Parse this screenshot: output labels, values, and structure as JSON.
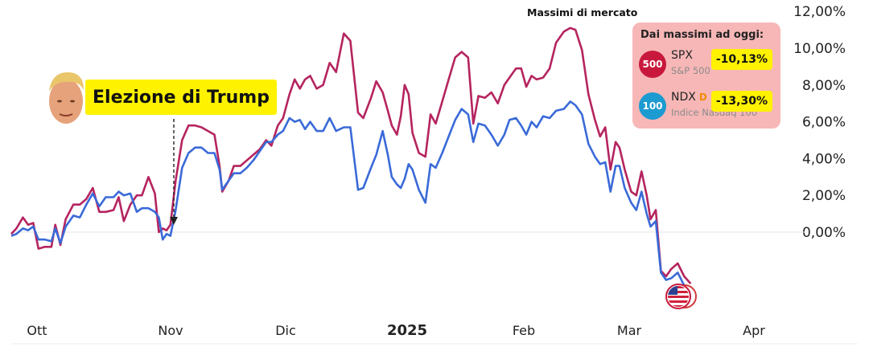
{
  "labels": {
    "top": "Massimi di mercato",
    "election": "Elezione di Trump"
  },
  "info_box": {
    "title": "Dai massimi ad oggi:",
    "rows": [
      {
        "badge": "500",
        "ticker": "SPX",
        "name": "S&P 500",
        "pct": "-10,13%",
        "extra": "",
        "color": "#c8193c"
      },
      {
        "badge": "100",
        "ticker": "NDX",
        "name": "Indice Nasdaq 100",
        "pct": "-13,30%",
        "extra": "D",
        "color": "#1c9bd1"
      }
    ]
  },
  "chart_data": {
    "type": "line",
    "x_ticks": [
      "Ott",
      "Nov",
      "Dic",
      "2025",
      "Feb",
      "Mar",
      "Apr"
    ],
    "y_ticks": [
      "12,00%",
      "10,00%",
      "8,00%",
      "6,00%",
      "4,00%",
      "2,00%",
      "0,00%"
    ],
    "ylim": [
      -3.4,
      12.5
    ],
    "grid": false,
    "annotations": [
      "Massimi di mercato",
      "Elezione di Trump"
    ],
    "series": [
      {
        "name": "SPX",
        "color": "#b5245f",
        "points": [
          [
            0,
            -0.1
          ],
          [
            0.2,
            0.2
          ],
          [
            0.45,
            0.8
          ],
          [
            0.65,
            0.4
          ],
          [
            0.85,
            0.5
          ],
          [
            1.05,
            -0.9
          ],
          [
            1.3,
            -0.8
          ],
          [
            1.55,
            -0.8
          ],
          [
            1.7,
            0.4
          ],
          [
            1.9,
            -0.7
          ],
          [
            2.1,
            0.7
          ],
          [
            2.4,
            1.5
          ],
          [
            2.65,
            1.5
          ],
          [
            2.9,
            1.8
          ],
          [
            3.15,
            2.4
          ],
          [
            3.4,
            1.1
          ],
          [
            3.65,
            1.1
          ],
          [
            3.95,
            1.2
          ],
          [
            4.15,
            1.9
          ],
          [
            4.35,
            0.6
          ],
          [
            4.6,
            1.5
          ],
          [
            4.85,
            2.0
          ],
          [
            5.05,
            2.0
          ],
          [
            5.3,
            3.0
          ],
          [
            5.55,
            2.1
          ],
          [
            5.7,
            0.0
          ],
          [
            5.85,
            0.2
          ],
          [
            6.0,
            0.1
          ],
          [
            6.15,
            0.4
          ],
          [
            6.35,
            2.8
          ],
          [
            6.6,
            5.0
          ],
          [
            6.85,
            5.8
          ],
          [
            7.1,
            5.8
          ],
          [
            7.35,
            5.7
          ],
          [
            7.6,
            5.5
          ],
          [
            7.85,
            5.3
          ],
          [
            8.05,
            3.6
          ],
          [
            8.15,
            2.2
          ],
          [
            8.4,
            2.8
          ],
          [
            8.6,
            3.6
          ],
          [
            8.85,
            3.6
          ],
          [
            9.1,
            3.9
          ],
          [
            9.35,
            4.2
          ],
          [
            9.6,
            4.5
          ],
          [
            9.85,
            5.0
          ],
          [
            10.05,
            4.7
          ],
          [
            10.3,
            5.8
          ],
          [
            10.5,
            6.2
          ],
          [
            10.75,
            7.5
          ],
          [
            10.95,
            8.3
          ],
          [
            11.15,
            7.8
          ],
          [
            11.35,
            8.3
          ],
          [
            11.55,
            8.5
          ],
          [
            11.8,
            7.8
          ],
          [
            12.05,
            8.0
          ],
          [
            12.3,
            9.2
          ],
          [
            12.55,
            8.7
          ],
          [
            12.85,
            10.8
          ],
          [
            13.1,
            10.4
          ],
          [
            13.4,
            6.5
          ],
          [
            13.6,
            6.2
          ],
          [
            13.9,
            7.3
          ],
          [
            14.1,
            8.2
          ],
          [
            14.35,
            7.6
          ],
          [
            14.55,
            6.6
          ],
          [
            14.7,
            5.8
          ],
          [
            14.9,
            5.3
          ],
          [
            15.05,
            6.3
          ],
          [
            15.2,
            8.0
          ],
          [
            15.35,
            7.5
          ],
          [
            15.5,
            5.4
          ],
          [
            15.75,
            4.3
          ],
          [
            16.0,
            4.1
          ],
          [
            16.2,
            6.4
          ],
          [
            16.4,
            5.9
          ],
          [
            16.65,
            7.1
          ],
          [
            16.9,
            8.3
          ],
          [
            17.15,
            9.5
          ],
          [
            17.4,
            9.8
          ],
          [
            17.65,
            9.5
          ],
          [
            17.85,
            5.9
          ],
          [
            18.05,
            7.4
          ],
          [
            18.3,
            7.3
          ],
          [
            18.55,
            7.6
          ],
          [
            18.8,
            7.0
          ],
          [
            19.05,
            8.0
          ],
          [
            19.25,
            8.4
          ],
          [
            19.5,
            8.9
          ],
          [
            19.7,
            8.9
          ],
          [
            19.9,
            7.9
          ],
          [
            20.1,
            8.5
          ],
          [
            20.3,
            8.3
          ],
          [
            20.55,
            8.4
          ],
          [
            20.8,
            8.9
          ],
          [
            21.05,
            10.3
          ],
          [
            21.35,
            10.9
          ],
          [
            21.6,
            11.1
          ],
          [
            21.8,
            11.0
          ],
          [
            22.05,
            9.9
          ],
          [
            22.3,
            7.5
          ],
          [
            22.55,
            6.1
          ],
          [
            22.75,
            5.2
          ],
          [
            22.95,
            5.7
          ],
          [
            23.15,
            3.4
          ],
          [
            23.35,
            4.9
          ],
          [
            23.5,
            4.6
          ],
          [
            23.7,
            3.4
          ],
          [
            23.95,
            2.2
          ],
          [
            24.15,
            2.0
          ],
          [
            24.35,
            3.3
          ],
          [
            24.55,
            2.0
          ],
          [
            24.7,
            0.7
          ],
          [
            24.9,
            1.2
          ],
          [
            25.1,
            -2.1
          ],
          [
            25.3,
            -2.4
          ],
          [
            25.5,
            -2.0
          ],
          [
            25.75,
            -1.7
          ],
          [
            26.0,
            -2.4
          ],
          [
            26.25,
            -2.8
          ]
        ]
      },
      {
        "name": "NDX",
        "color": "#3a6ad8",
        "points": [
          [
            0,
            -0.2
          ],
          [
            0.2,
            -0.1
          ],
          [
            0.45,
            0.2
          ],
          [
            0.65,
            0.1
          ],
          [
            0.85,
            0.3
          ],
          [
            1.05,
            -0.4
          ],
          [
            1.3,
            -0.4
          ],
          [
            1.55,
            -0.5
          ],
          [
            1.7,
            0.2
          ],
          [
            1.9,
            -0.6
          ],
          [
            2.1,
            0.3
          ],
          [
            2.4,
            0.9
          ],
          [
            2.65,
            0.8
          ],
          [
            2.9,
            1.5
          ],
          [
            3.15,
            2.1
          ],
          [
            3.4,
            1.4
          ],
          [
            3.65,
            1.9
          ],
          [
            3.95,
            1.9
          ],
          [
            4.15,
            2.2
          ],
          [
            4.35,
            2.0
          ],
          [
            4.6,
            2.1
          ],
          [
            4.85,
            1.1
          ],
          [
            5.05,
            1.3
          ],
          [
            5.3,
            1.3
          ],
          [
            5.55,
            1.1
          ],
          [
            5.7,
            0.8
          ],
          [
            5.85,
            -0.4
          ],
          [
            6.0,
            -0.1
          ],
          [
            6.15,
            -0.2
          ],
          [
            6.35,
            1.2
          ],
          [
            6.6,
            3.5
          ],
          [
            6.85,
            4.3
          ],
          [
            7.1,
            4.6
          ],
          [
            7.35,
            4.6
          ],
          [
            7.6,
            4.3
          ],
          [
            7.85,
            4.3
          ],
          [
            8.05,
            3.4
          ],
          [
            8.15,
            2.3
          ],
          [
            8.4,
            2.8
          ],
          [
            8.6,
            3.2
          ],
          [
            8.85,
            3.2
          ],
          [
            9.1,
            3.5
          ],
          [
            9.35,
            3.9
          ],
          [
            9.6,
            4.4
          ],
          [
            9.85,
            4.9
          ],
          [
            10.05,
            4.9
          ],
          [
            10.3,
            5.3
          ],
          [
            10.5,
            5.5
          ],
          [
            10.75,
            6.2
          ],
          [
            10.95,
            6.0
          ],
          [
            11.15,
            6.1
          ],
          [
            11.35,
            5.6
          ],
          [
            11.55,
            6.0
          ],
          [
            11.8,
            5.5
          ],
          [
            12.05,
            5.5
          ],
          [
            12.3,
            6.2
          ],
          [
            12.55,
            5.5
          ],
          [
            12.85,
            5.7
          ],
          [
            13.1,
            5.7
          ],
          [
            13.4,
            2.3
          ],
          [
            13.6,
            2.4
          ],
          [
            13.9,
            3.5
          ],
          [
            14.1,
            4.2
          ],
          [
            14.35,
            5.5
          ],
          [
            14.55,
            4.2
          ],
          [
            14.7,
            3.0
          ],
          [
            14.9,
            2.6
          ],
          [
            15.05,
            2.4
          ],
          [
            15.2,
            2.9
          ],
          [
            15.35,
            3.7
          ],
          [
            15.5,
            3.4
          ],
          [
            15.75,
            2.3
          ],
          [
            16.0,
            1.6
          ],
          [
            16.2,
            3.7
          ],
          [
            16.4,
            3.5
          ],
          [
            16.65,
            4.3
          ],
          [
            16.9,
            5.2
          ],
          [
            17.15,
            6.1
          ],
          [
            17.4,
            6.7
          ],
          [
            17.65,
            6.4
          ],
          [
            17.85,
            4.9
          ],
          [
            18.05,
            5.9
          ],
          [
            18.3,
            5.8
          ],
          [
            18.55,
            5.3
          ],
          [
            18.8,
            4.7
          ],
          [
            19.05,
            5.3
          ],
          [
            19.25,
            6.1
          ],
          [
            19.5,
            6.2
          ],
          [
            19.7,
            5.8
          ],
          [
            19.9,
            5.3
          ],
          [
            20.1,
            6.0
          ],
          [
            20.3,
            5.7
          ],
          [
            20.55,
            6.3
          ],
          [
            20.8,
            6.2
          ],
          [
            21.05,
            6.6
          ],
          [
            21.35,
            6.7
          ],
          [
            21.6,
            7.1
          ],
          [
            21.8,
            6.9
          ],
          [
            22.05,
            6.4
          ],
          [
            22.3,
            4.8
          ],
          [
            22.55,
            4.1
          ],
          [
            22.75,
            3.7
          ],
          [
            22.95,
            3.8
          ],
          [
            23.15,
            2.2
          ],
          [
            23.35,
            3.6
          ],
          [
            23.5,
            3.6
          ],
          [
            23.7,
            2.4
          ],
          [
            23.95,
            1.6
          ],
          [
            24.15,
            1.2
          ],
          [
            24.35,
            2.2
          ],
          [
            24.55,
            1.0
          ],
          [
            24.7,
            0.3
          ],
          [
            24.9,
            0.6
          ],
          [
            25.1,
            -2.2
          ],
          [
            25.3,
            -2.6
          ],
          [
            25.5,
            -2.5
          ],
          [
            25.75,
            -2.2
          ],
          [
            26.0,
            -2.9
          ],
          [
            26.25,
            -3.1
          ]
        ]
      }
    ]
  }
}
